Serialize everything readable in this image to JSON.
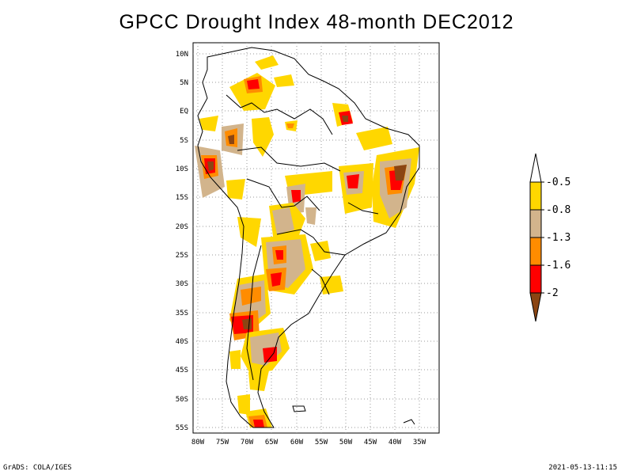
{
  "title": "GPCC Drought Index 48-month DEC2012",
  "footer": {
    "left": "GrADS: COLA/IGES",
    "right": "2021-05-13-11:15"
  },
  "map": {
    "region": "South America",
    "lat_ticks": [
      "10N",
      "5N",
      "EQ",
      "5S",
      "10S",
      "15S",
      "20S",
      "25S",
      "30S",
      "35S",
      "40S",
      "45S",
      "50S",
      "55S"
    ],
    "lon_ticks": [
      "80W",
      "75W",
      "70W",
      "65W",
      "60W",
      "55W",
      "50W",
      "45W",
      "40W",
      "35W"
    ]
  },
  "legend": {
    "labels": [
      "-0.5",
      "-0.8",
      "-1.3",
      "-1.6",
      "-2"
    ],
    "colors": [
      "#ffd700",
      "#d2b48c",
      "#ff8c00",
      "#ff0000",
      "#8b4513"
    ]
  },
  "colors": {
    "yellow": "#ffd700",
    "tan": "#d2b48c",
    "orange": "#ff8c00",
    "red": "#ff0000",
    "brown": "#8b4513"
  }
}
